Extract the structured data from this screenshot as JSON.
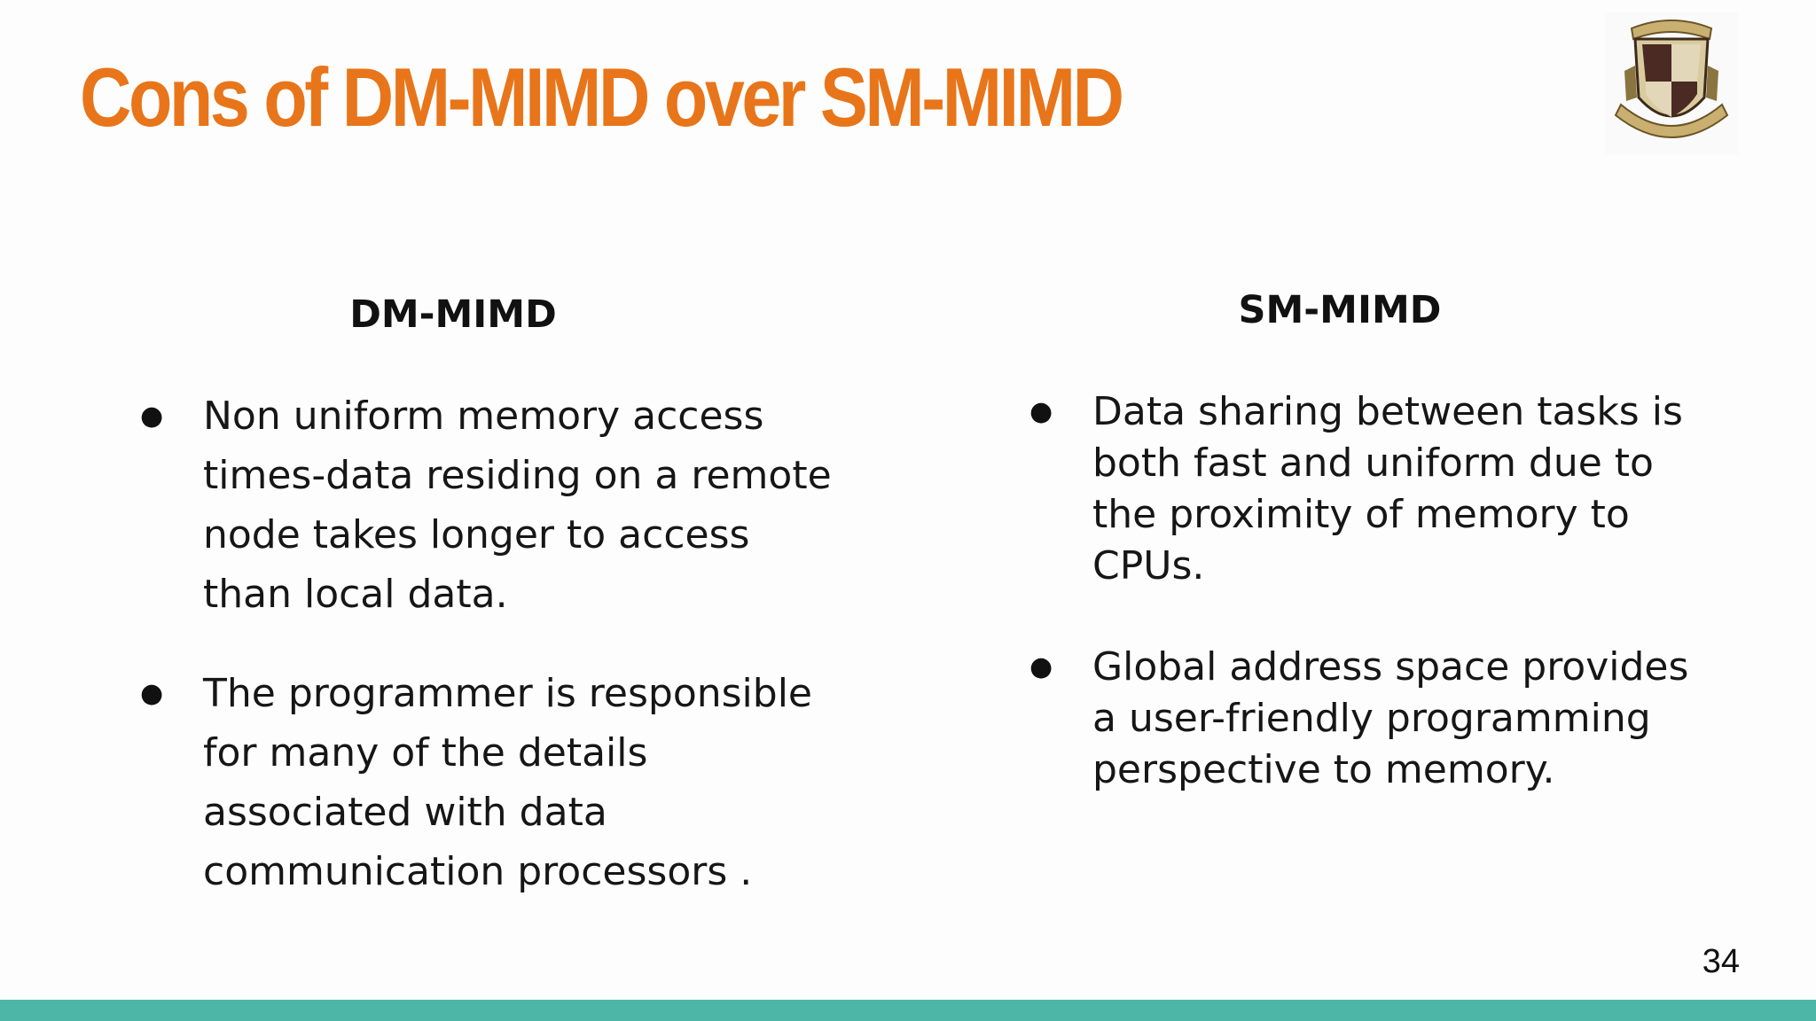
{
  "slide": {
    "title": "Cons of DM-MIMD over SM-MIMD",
    "page_number": "34",
    "colors": {
      "title": "#e8751a",
      "bottom_bar": "#4db6a6"
    }
  },
  "logo": {
    "icon": "college-crest-icon"
  },
  "columns": {
    "left": {
      "heading": "DM-MIMD",
      "bullets": [
        "Non uniform memory access times-data residing on a remote node takes longer to access than local data.",
        "The programmer is responsible for many of the details associated with data communication processors ."
      ]
    },
    "right": {
      "heading": "SM-MIMD",
      "bullets": [
        "Data sharing between tasks is both fast and uniform due to the proximity of memory to CPUs.",
        "Global address space provides a user-friendly programming perspective to memory."
      ]
    }
  }
}
